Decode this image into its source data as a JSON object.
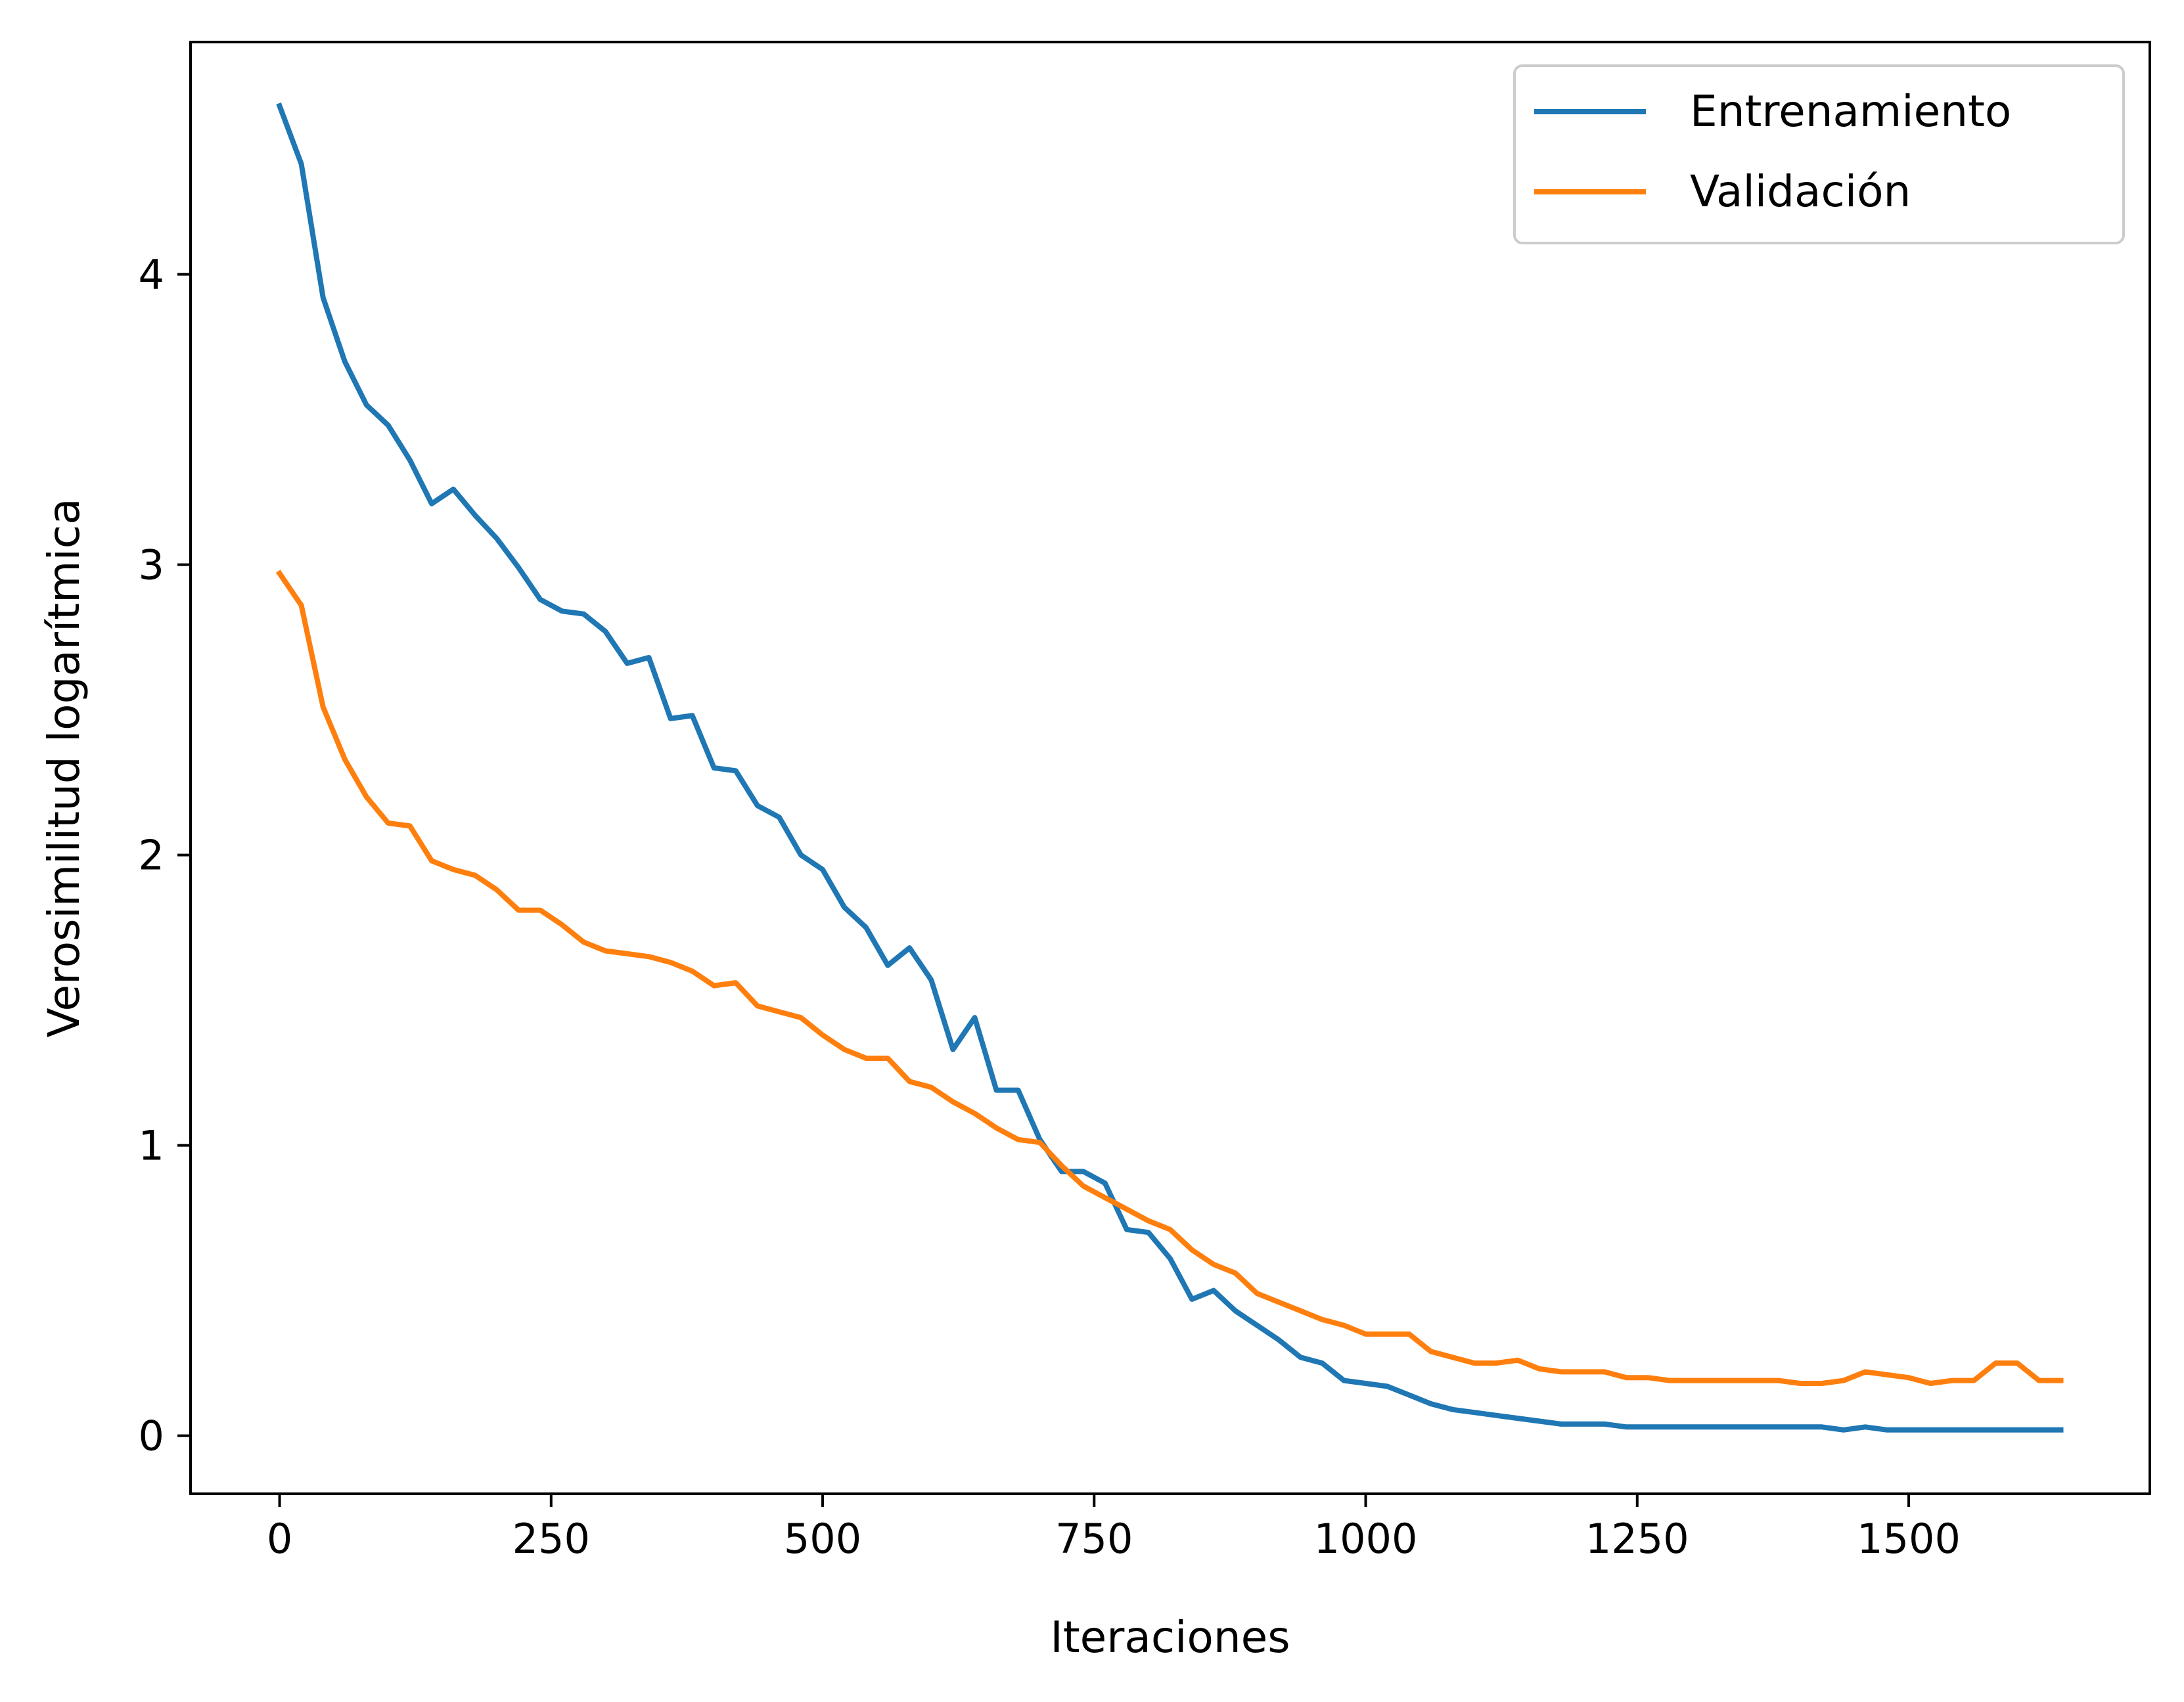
{
  "chart_data": {
    "type": "line",
    "title": "",
    "xlabel": "Iteraciones",
    "ylabel": "Verosimilitud logarítmica",
    "xlim": [
      -82,
      1722
    ],
    "ylim": [
      -0.2,
      4.8
    ],
    "xticks": [
      0,
      250,
      500,
      750,
      1000,
      1250,
      1500
    ],
    "yticks": [
      0,
      1,
      2,
      3,
      4
    ],
    "grid": false,
    "legend_position": "top-right",
    "x": [
      0,
      20,
      40,
      60,
      80,
      100,
      120,
      140,
      160,
      180,
      200,
      220,
      240,
      260,
      280,
      300,
      320,
      340,
      360,
      380,
      400,
      420,
      440,
      460,
      480,
      500,
      520,
      540,
      560,
      580,
      600,
      620,
      640,
      660,
      680,
      700,
      720,
      740,
      760,
      780,
      800,
      820,
      840,
      860,
      880,
      900,
      920,
      940,
      960,
      980,
      1000,
      1020,
      1040,
      1060,
      1080,
      1100,
      1120,
      1140,
      1160,
      1180,
      1200,
      1220,
      1240,
      1260,
      1280,
      1300,
      1320,
      1340,
      1360,
      1380,
      1400,
      1420,
      1440,
      1460,
      1480,
      1500,
      1520,
      1540,
      1560,
      1580,
      1600,
      1620,
      1640
    ],
    "series": [
      {
        "name": "Entrenamiento",
        "color": "#1f77b4",
        "values": [
          4.58,
          4.38,
          3.92,
          3.7,
          3.55,
          3.48,
          3.36,
          3.21,
          3.26,
          3.17,
          3.09,
          2.99,
          2.88,
          2.84,
          2.83,
          2.77,
          2.66,
          2.68,
          2.47,
          2.48,
          2.3,
          2.29,
          2.17,
          2.13,
          2.0,
          1.95,
          1.82,
          1.75,
          1.62,
          1.68,
          1.57,
          1.33,
          1.44,
          1.19,
          1.19,
          1.02,
          0.91,
          0.91,
          0.87,
          0.71,
          0.7,
          0.61,
          0.47,
          0.5,
          0.43,
          0.38,
          0.33,
          0.27,
          0.25,
          0.19,
          0.18,
          0.17,
          0.14,
          0.11,
          0.09,
          0.08,
          0.07,
          0.06,
          0.05,
          0.04,
          0.04,
          0.04,
          0.03,
          0.03,
          0.03,
          0.03,
          0.03,
          0.03,
          0.03,
          0.03,
          0.03,
          0.03,
          0.02,
          0.03,
          0.02,
          0.02,
          0.02,
          0.02,
          0.02,
          0.02,
          0.02,
          0.02,
          0.02
        ]
      },
      {
        "name": "Validación",
        "color": "#ff7f0e",
        "values": [
          2.97,
          2.86,
          2.51,
          2.33,
          2.2,
          2.11,
          2.1,
          1.98,
          1.95,
          1.93,
          1.88,
          1.81,
          1.81,
          1.76,
          1.7,
          1.67,
          1.66,
          1.65,
          1.63,
          1.6,
          1.55,
          1.56,
          1.48,
          1.46,
          1.44,
          1.38,
          1.33,
          1.3,
          1.3,
          1.22,
          1.2,
          1.15,
          1.11,
          1.06,
          1.02,
          1.01,
          0.93,
          0.86,
          0.82,
          0.78,
          0.74,
          0.71,
          0.64,
          0.59,
          0.56,
          0.49,
          0.46,
          0.43,
          0.4,
          0.38,
          0.35,
          0.35,
          0.35,
          0.29,
          0.27,
          0.25,
          0.25,
          0.26,
          0.23,
          0.22,
          0.22,
          0.22,
          0.2,
          0.2,
          0.19,
          0.19,
          0.19,
          0.19,
          0.19,
          0.19,
          0.18,
          0.18,
          0.19,
          0.22,
          0.21,
          0.2,
          0.18,
          0.19,
          0.19,
          0.25,
          0.25,
          0.19,
          0.19
        ]
      }
    ]
  }
}
